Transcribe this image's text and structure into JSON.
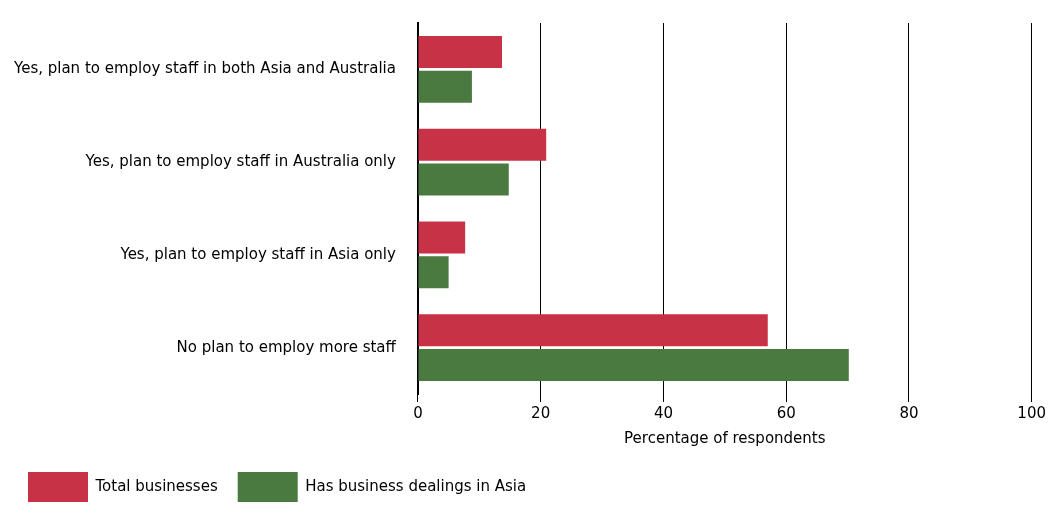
{
  "chart_data": {
    "type": "bar",
    "orientation": "horizontal",
    "xlabel": "Percentage of respondents",
    "categories": [
      "Yes, plan to employ staff in both Asia and Australia",
      "Yes, plan to employ staff in Australia only",
      "Yes, plan to employ staff in Asia only",
      "No plan to employ more staff"
    ],
    "series": [
      {
        "name": "Total businesses",
        "color": "#c83246",
        "values": [
          13.7,
          20.9,
          7.7,
          57
        ]
      },
      {
        "name": "Has business dealings in Asia",
        "color": "#4a7a40",
        "values": [
          8.8,
          14.8,
          5,
          70.2
        ]
      }
    ],
    "xlim": [
      0,
      100
    ],
    "xticks": [
      0,
      20,
      40,
      60,
      80,
      100
    ],
    "grid": "x",
    "legend": "bottom"
  }
}
